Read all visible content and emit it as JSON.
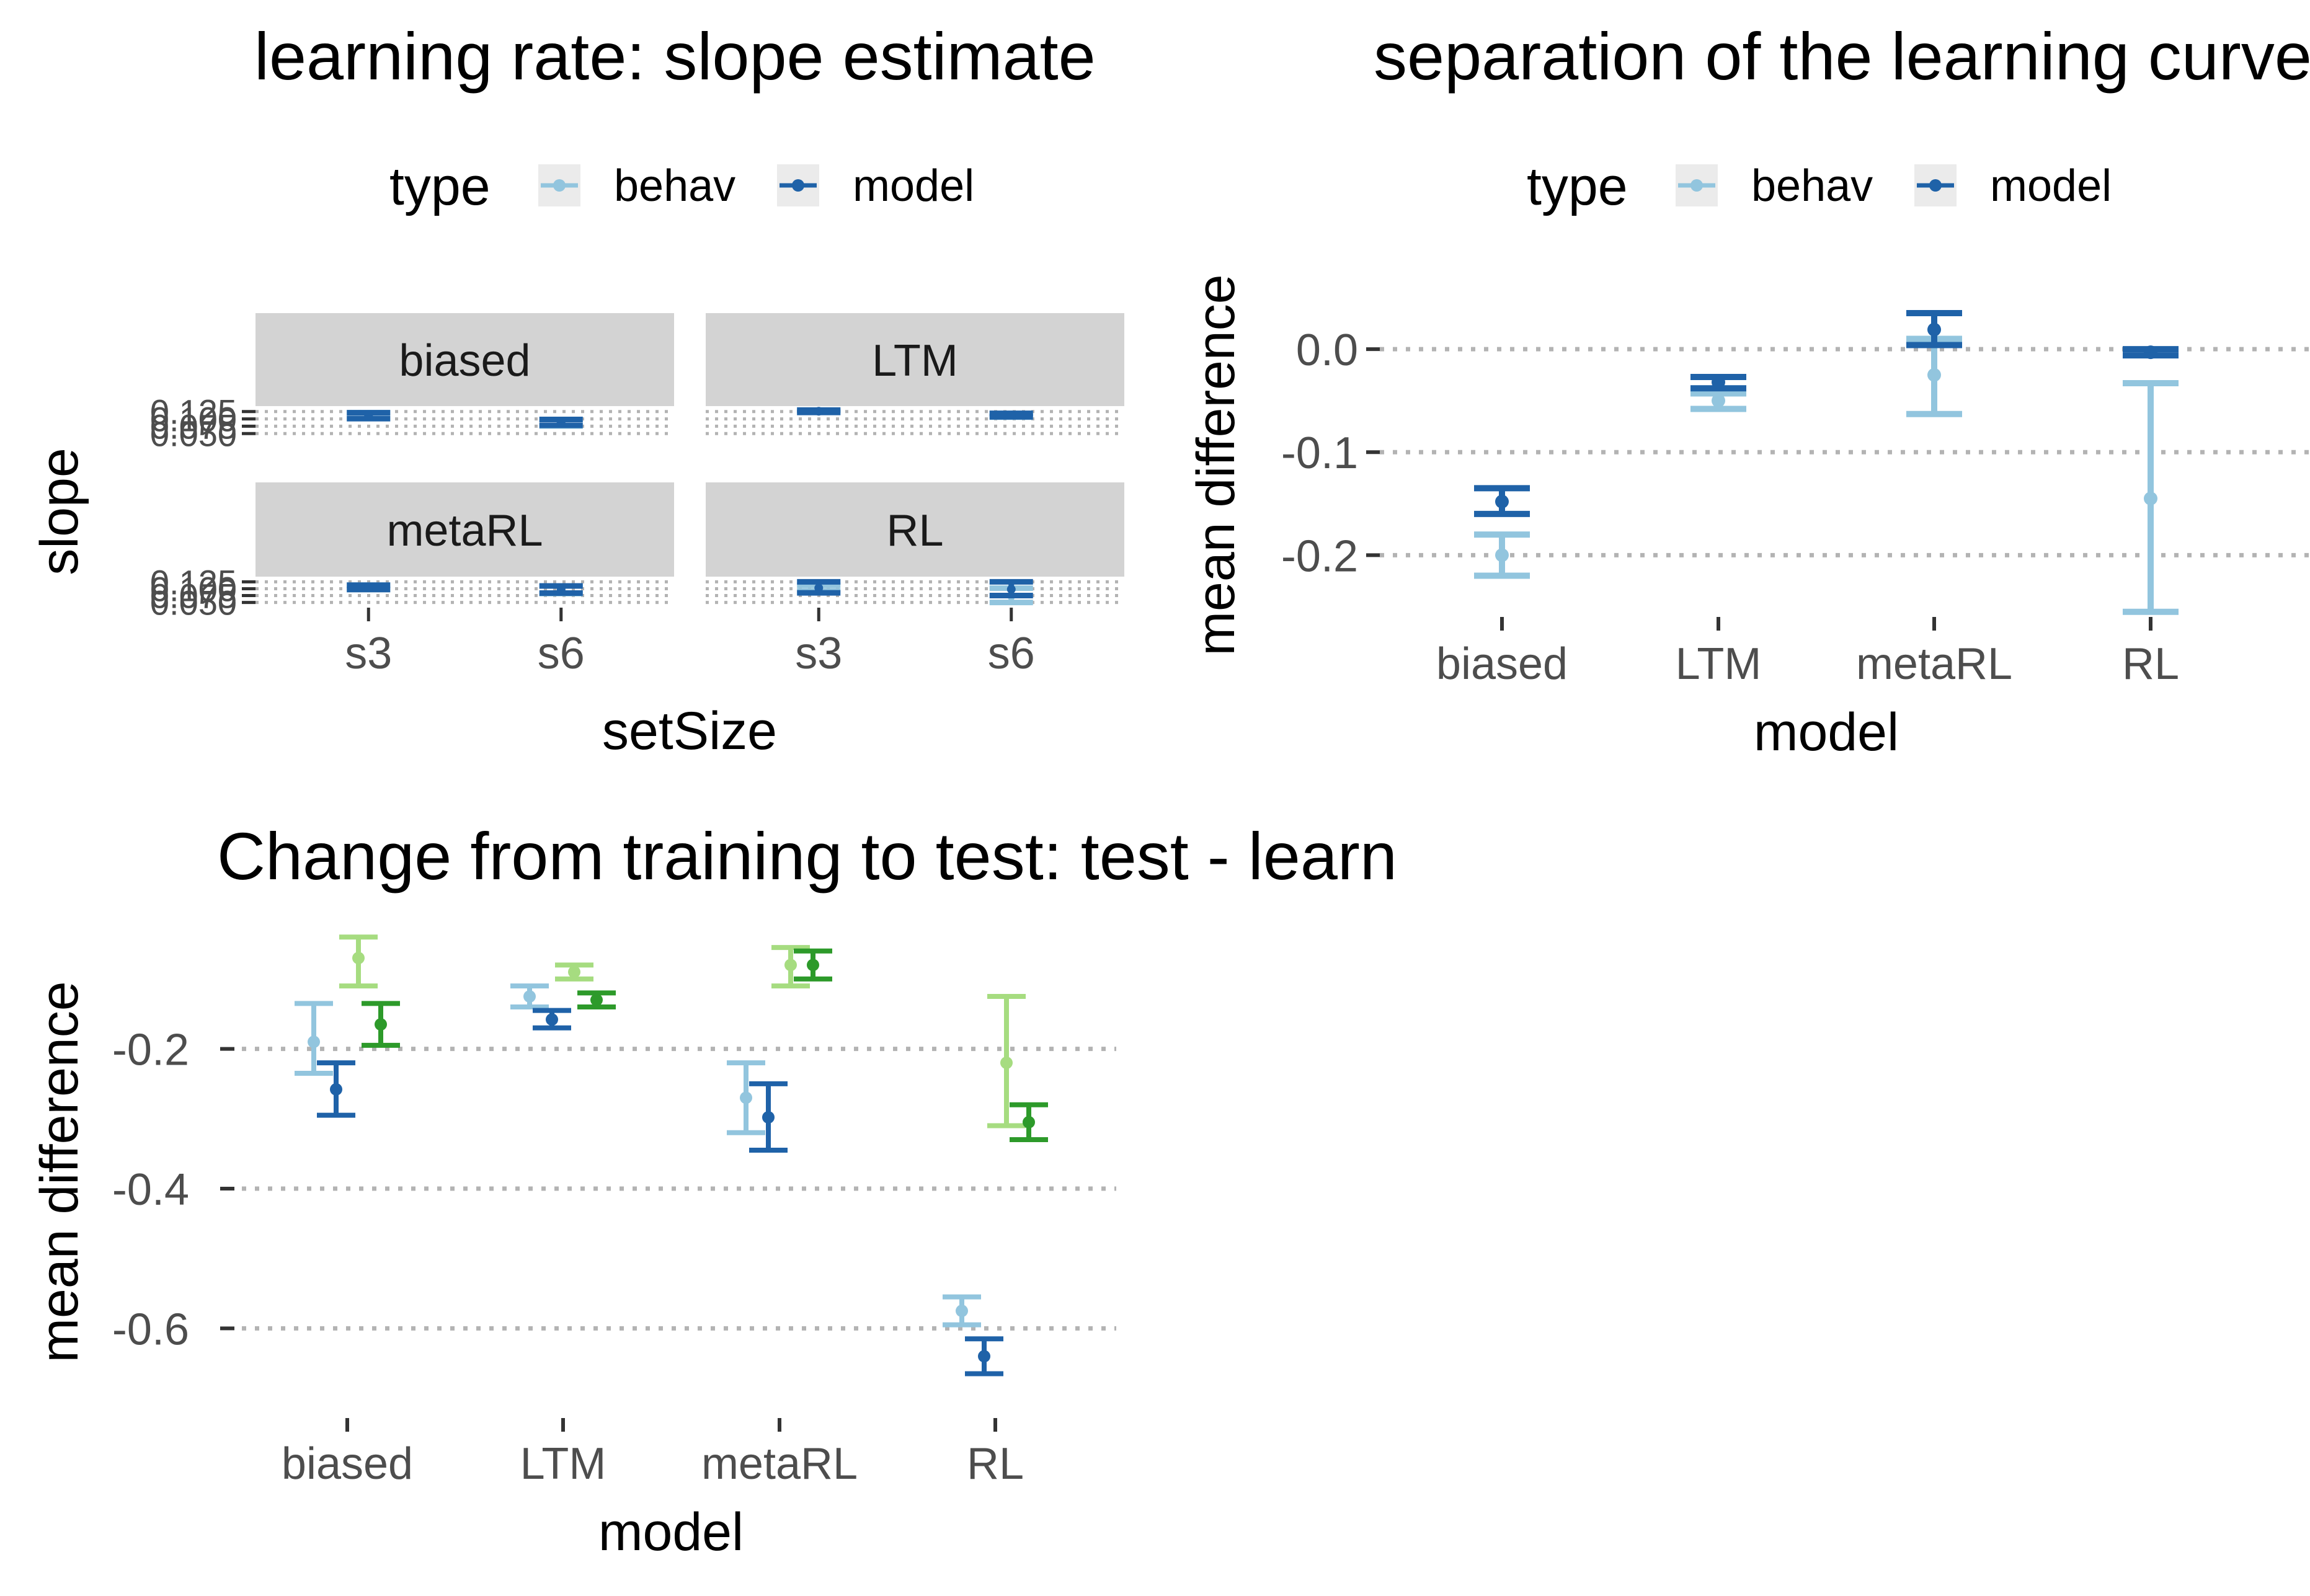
{
  "colors": {
    "behav": "#92c5de",
    "model": "#1f62a8",
    "light_green": "#a6dc80",
    "dark_green": "#2d9a2a",
    "grid": "#b3b3b3",
    "strip": "#d3d3d3",
    "legend_key_bg": "#ebebeb"
  },
  "chart_data": [
    {
      "type": "errorbar",
      "title": "learning rate: slope estimate",
      "xlabel": "setSize",
      "ylabel": "slope",
      "legend": {
        "title": "type",
        "position": "top",
        "entries": [
          "behav",
          "model"
        ]
      },
      "facets": [
        "biased",
        "LTM",
        "metaRL",
        "RL"
      ],
      "categories": [
        "s3",
        "s6"
      ],
      "y_ticks": [
        "0.050",
        "0.075",
        "0.100",
        "0.125"
      ],
      "ylim": [
        0.04,
        0.135
      ],
      "grid": "horizontal dotted",
      "panels": [
        {
          "facet": "biased",
          "series": [
            {
              "name": "behav",
              "values": [
                0.111,
                0.088
              ],
              "lower": [
                0.101,
                0.076
              ],
              "upper": [
                0.121,
                0.098
              ]
            },
            {
              "name": "model",
              "values": [
                0.111,
                0.088
              ],
              "lower": [
                0.101,
                0.078
              ],
              "upper": [
                0.121,
                0.098
              ]
            }
          ]
        },
        {
          "facet": "LTM",
          "series": [
            {
              "name": "behav",
              "values": [
                0.126,
                0.112
              ],
              "lower": [
                0.122,
                0.106
              ],
              "upper": [
                0.13,
                0.118
              ]
            },
            {
              "name": "model",
              "values": [
                0.126,
                0.113
              ],
              "lower": [
                0.122,
                0.107
              ],
              "upper": [
                0.13,
                0.119
              ]
            }
          ]
        },
        {
          "facet": "metaRL",
          "series": [
            {
              "name": "behav",
              "values": [
                0.105,
                0.096
              ],
              "lower": [
                0.097,
                0.082
              ],
              "upper": [
                0.113,
                0.11
              ]
            },
            {
              "name": "model",
              "values": [
                0.105,
                0.097
              ],
              "lower": [
                0.097,
                0.084
              ],
              "upper": [
                0.113,
                0.11
              ]
            }
          ]
        },
        {
          "facet": "RL",
          "series": [
            {
              "name": "behav",
              "values": [
                0.103,
                0.075
              ],
              "lower": [
                0.092,
                0.05
              ],
              "upper": [
                0.113,
                0.102
              ]
            },
            {
              "name": "model",
              "values": [
                0.103,
                0.098
              ],
              "lower": [
                0.085,
                0.075
              ],
              "upper": [
                0.125,
                0.125
              ]
            }
          ]
        }
      ]
    },
    {
      "type": "errorbar",
      "title": "separation of the learning curves",
      "xlabel": "model",
      "ylabel": "mean difference",
      "legend": {
        "title": "type",
        "position": "top",
        "entries": [
          "behav",
          "model"
        ]
      },
      "categories": [
        "biased",
        "LTM",
        "metaRL",
        "RL"
      ],
      "y_ticks": [
        "-0.2",
        "-0.1",
        "0.0"
      ],
      "ylim": [
        -0.26,
        0.035
      ],
      "grid": "horizontal dotted",
      "series": [
        {
          "name": "behav",
          "values": [
            -0.2,
            -0.05,
            -0.025,
            -0.145
          ],
          "lower": [
            -0.22,
            -0.058,
            -0.063,
            -0.255
          ],
          "upper": [
            -0.18,
            -0.043,
            0.01,
            -0.033
          ]
        },
        {
          "name": "model",
          "values": [
            -0.148,
            -0.032,
            0.019,
            -0.003
          ],
          "lower": [
            -0.16,
            -0.038,
            0.004,
            -0.006
          ],
          "upper": [
            -0.135,
            -0.027,
            0.035,
            0.0
          ]
        }
      ]
    },
    {
      "type": "errorbar",
      "title": "Change from training to test: test - learn",
      "xlabel": "model",
      "ylabel": "mean difference",
      "categories": [
        "biased",
        "LTM",
        "metaRL",
        "RL"
      ],
      "y_ticks": [
        "-0.6",
        "-0.4",
        "-0.2"
      ],
      "ylim": [
        -0.7,
        -0.03
      ],
      "grid": "horizontal dotted",
      "series": [
        {
          "name": "light blue",
          "color": "behav",
          "values": [
            -0.19,
            -0.125,
            -0.27,
            -0.575
          ],
          "lower": [
            -0.235,
            -0.14,
            -0.32,
            -0.595
          ],
          "upper": [
            -0.135,
            -0.11,
            -0.22,
            -0.555
          ]
        },
        {
          "name": "dark blue",
          "color": "model",
          "values": [
            -0.258,
            -0.158,
            -0.298,
            -0.64
          ],
          "lower": [
            -0.295,
            -0.17,
            -0.345,
            -0.665
          ],
          "upper": [
            -0.22,
            -0.145,
            -0.25,
            -0.615
          ]
        },
        {
          "name": "light green",
          "color": "light_green",
          "values": [
            -0.07,
            -0.09,
            -0.08,
            -0.22
          ],
          "lower": [
            -0.11,
            -0.1,
            -0.11,
            -0.31
          ],
          "upper": [
            -0.04,
            -0.08,
            -0.055,
            -0.125
          ]
        },
        {
          "name": "dark green",
          "color": "dark_green",
          "values": [
            -0.165,
            -0.13,
            -0.08,
            -0.305
          ],
          "lower": [
            -0.195,
            -0.14,
            -0.1,
            -0.33
          ],
          "upper": [
            -0.135,
            -0.12,
            -0.06,
            -0.28
          ]
        }
      ]
    }
  ]
}
